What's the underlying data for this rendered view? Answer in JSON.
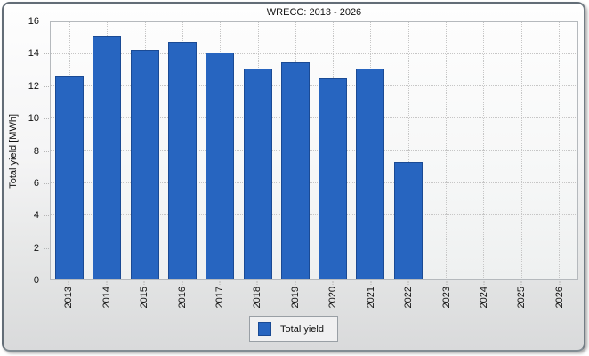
{
  "chart_data": {
    "type": "bar",
    "title": "WRECC: 2013 - 2026",
    "categories": [
      "2013",
      "2014",
      "2015",
      "2016",
      "2017",
      "2018",
      "2019",
      "2020",
      "2021",
      "2022",
      "2023",
      "2024",
      "2025",
      "2026"
    ],
    "values": [
      12.7,
      15.1,
      14.3,
      14.8,
      14.1,
      13.1,
      13.5,
      12.5,
      13.1,
      7.3,
      null,
      null,
      null,
      null
    ],
    "series_name": "Total yield",
    "ylabel": "Total yield [MWh]",
    "ylim": [
      0,
      16
    ],
    "yticks": [
      0,
      2,
      4,
      6,
      8,
      10,
      12,
      14,
      16
    ],
    "grid": "dotted",
    "legend_position": "bottom-center",
    "bar_color": "#2765c0",
    "bar_border_color": "#1a4a94",
    "legend": {
      "label": "Total yield"
    }
  }
}
